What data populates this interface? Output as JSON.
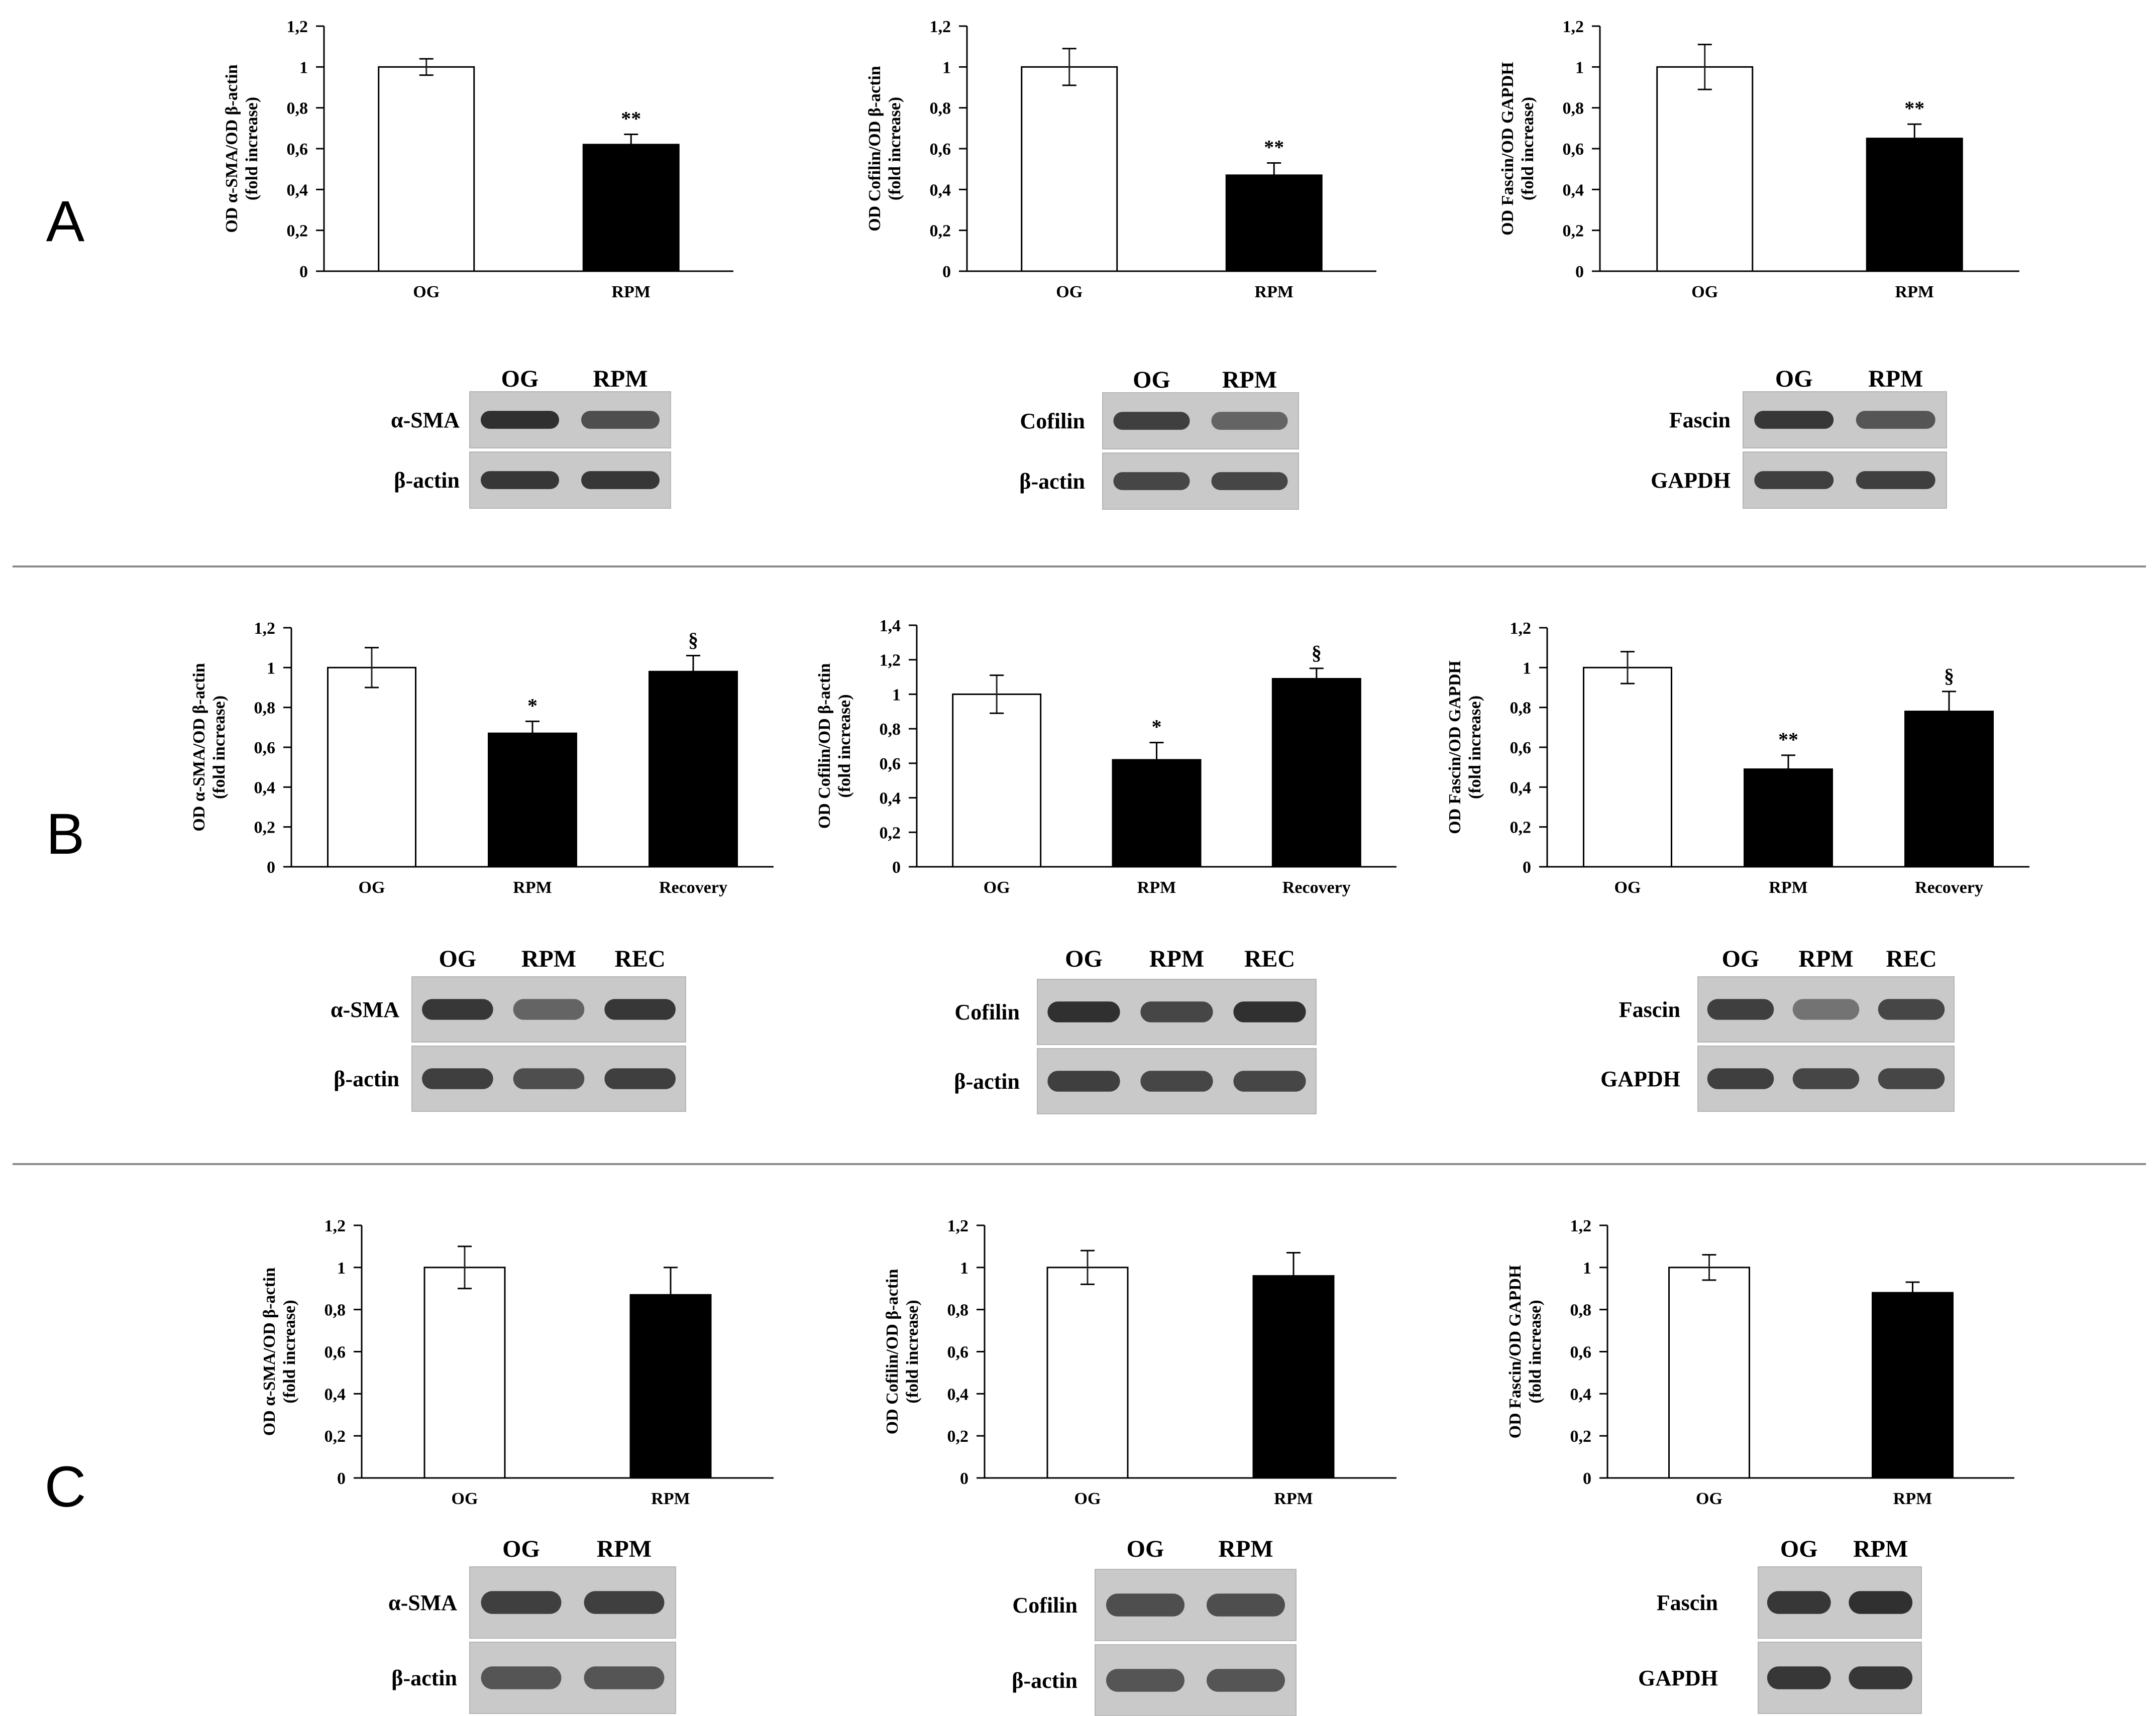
{
  "panels": [
    {
      "letter": "A"
    },
    {
      "letter": "B"
    },
    {
      "letter": "C"
    }
  ],
  "chart_data": [
    {
      "panel": "A",
      "type": "bar",
      "ylabel": "OD α-SMA/OD β-actin (fold increase)",
      "categories": [
        "OG",
        "RPM"
      ],
      "values": [
        1.0,
        0.62
      ],
      "errors": [
        0.04,
        0.05
      ],
      "significance": [
        "",
        "**"
      ],
      "colors": [
        "#ffffff",
        "#000000"
      ],
      "yticks": [
        "0",
        "0,2",
        "0,4",
        "0,6",
        "0,8",
        "1",
        "1,2"
      ],
      "ylim": [
        0,
        1.2
      ]
    },
    {
      "panel": "A",
      "type": "bar",
      "ylabel": "OD Cofilin/OD β-actin (fold increase)",
      "categories": [
        "OG",
        "RPM"
      ],
      "values": [
        1.0,
        0.47
      ],
      "errors": [
        0.09,
        0.06
      ],
      "significance": [
        "",
        "**"
      ],
      "colors": [
        "#ffffff",
        "#000000"
      ],
      "yticks": [
        "0",
        "0,2",
        "0,4",
        "0,6",
        "0,8",
        "1",
        "1,2"
      ],
      "ylim": [
        0,
        1.2
      ]
    },
    {
      "panel": "A",
      "type": "bar",
      "ylabel": "OD Fascin/OD GAPDH (fold increase)",
      "categories": [
        "OG",
        "RPM"
      ],
      "values": [
        1.0,
        0.65
      ],
      "errors": [
        0.11,
        0.07
      ],
      "significance": [
        "",
        "**"
      ],
      "colors": [
        "#ffffff",
        "#000000"
      ],
      "yticks": [
        "0",
        "0,2",
        "0,4",
        "0,6",
        "0,8",
        "1",
        "1,2"
      ],
      "ylim": [
        0,
        1.2
      ]
    },
    {
      "panel": "B",
      "type": "bar",
      "ylabel": "OD α-SMA/OD β-actin (fold increase)",
      "categories": [
        "OG",
        "RPM",
        "Recovery"
      ],
      "values": [
        1.0,
        0.67,
        0.98
      ],
      "errors": [
        0.1,
        0.06,
        0.08
      ],
      "significance": [
        "",
        "*",
        "§"
      ],
      "colors": [
        "#ffffff",
        "#000000",
        "#000000"
      ],
      "yticks": [
        "0",
        "0,2",
        "0,4",
        "0,6",
        "0,8",
        "1",
        "1,2"
      ],
      "ylim": [
        0,
        1.2
      ]
    },
    {
      "panel": "B",
      "type": "bar",
      "ylabel": "OD Cofilin/OD β-actin (fold increase)",
      "categories": [
        "OG",
        "RPM",
        "Recovery"
      ],
      "values": [
        1.0,
        0.62,
        1.09
      ],
      "errors": [
        0.11,
        0.1,
        0.06
      ],
      "significance": [
        "",
        "*",
        "§"
      ],
      "colors": [
        "#ffffff",
        "#000000",
        "#000000"
      ],
      "yticks": [
        "0",
        "0,2",
        "0,4",
        "0,6",
        "0,8",
        "1",
        "1,2",
        "1,4"
      ],
      "ylim": [
        0,
        1.4
      ]
    },
    {
      "panel": "B",
      "type": "bar",
      "ylabel": "OD Fascin/OD GAPDH (fold increase)",
      "categories": [
        "OG",
        "RPM",
        "Recovery"
      ],
      "values": [
        1.0,
        0.49,
        0.78
      ],
      "errors": [
        0.08,
        0.07,
        0.1
      ],
      "significance": [
        "",
        "**",
        "§"
      ],
      "colors": [
        "#ffffff",
        "#000000",
        "#000000"
      ],
      "yticks": [
        "0",
        "0,2",
        "0,4",
        "0,6",
        "0,8",
        "1",
        "1,2"
      ],
      "ylim": [
        0,
        1.2
      ]
    },
    {
      "panel": "C",
      "type": "bar",
      "ylabel": "OD α-SMA/OD β-actin (fold increase)",
      "categories": [
        "OG",
        "RPM"
      ],
      "values": [
        1.0,
        0.87
      ],
      "errors": [
        0.1,
        0.13
      ],
      "significance": [
        "",
        ""
      ],
      "colors": [
        "#ffffff",
        "#000000"
      ],
      "yticks": [
        "0",
        "0,2",
        "0,4",
        "0,6",
        "0,8",
        "1",
        "1,2"
      ],
      "ylim": [
        0,
        1.2
      ]
    },
    {
      "panel": "C",
      "type": "bar",
      "ylabel": "OD Cofilin/OD β-actin (fold increase)",
      "categories": [
        "OG",
        "RPM"
      ],
      "values": [
        1.0,
        0.96
      ],
      "errors": [
        0.08,
        0.11
      ],
      "significance": [
        "",
        ""
      ],
      "colors": [
        "#ffffff",
        "#000000"
      ],
      "yticks": [
        "0",
        "0,2",
        "0,4",
        "0,6",
        "0,8",
        "1",
        "1,2"
      ],
      "ylim": [
        0,
        1.2
      ]
    },
    {
      "panel": "C",
      "type": "bar",
      "ylabel": "OD Fascin/OD GAPDH (fold increase)",
      "categories": [
        "OG",
        "RPM"
      ],
      "values": [
        1.0,
        0.88
      ],
      "errors": [
        0.06,
        0.05
      ],
      "significance": [
        "",
        ""
      ],
      "colors": [
        "#ffffff",
        "#000000"
      ],
      "yticks": [
        "0",
        "0,2",
        "0,4",
        "0,6",
        "0,8",
        "1",
        "1,2"
      ],
      "ylim": [
        0,
        1.2
      ]
    }
  ],
  "blots": [
    {
      "panel": "A",
      "lanes": [
        "OG",
        "RPM"
      ],
      "rows": [
        {
          "label": "α-SMA",
          "intensity": [
            0.95,
            0.75
          ]
        },
        {
          "label": "β-actin",
          "intensity": [
            0.9,
            0.9
          ]
        }
      ]
    },
    {
      "panel": "A",
      "lanes": [
        "OG",
        "RPM"
      ],
      "rows": [
        {
          "label": "Cofilin",
          "intensity": [
            0.85,
            0.6
          ]
        },
        {
          "label": "β-actin",
          "intensity": [
            0.8,
            0.8
          ]
        }
      ]
    },
    {
      "panel": "A",
      "lanes": [
        "OG",
        "RPM"
      ],
      "rows": [
        {
          "label": "Fascin",
          "intensity": [
            0.9,
            0.7
          ]
        },
        {
          "label": "GAPDH",
          "intensity": [
            0.85,
            0.85
          ]
        }
      ]
    },
    {
      "panel": "B",
      "lanes": [
        "OG",
        "RPM",
        "REC"
      ],
      "rows": [
        {
          "label": "α-SMA",
          "intensity": [
            0.9,
            0.6,
            0.9
          ]
        },
        {
          "label": "β-actin",
          "intensity": [
            0.85,
            0.75,
            0.85
          ]
        }
      ]
    },
    {
      "panel": "B",
      "lanes": [
        "OG",
        "RPM",
        "REC"
      ],
      "rows": [
        {
          "label": "Cofilin",
          "intensity": [
            0.95,
            0.8,
            0.95
          ]
        },
        {
          "label": "β-actin",
          "intensity": [
            0.85,
            0.8,
            0.8
          ]
        }
      ]
    },
    {
      "panel": "B",
      "lanes": [
        "OG",
        "RPM",
        "REC"
      ],
      "rows": [
        {
          "label": "Fascin",
          "intensity": [
            0.85,
            0.5,
            0.8
          ]
        },
        {
          "label": "GAPDH",
          "intensity": [
            0.85,
            0.8,
            0.8
          ]
        }
      ]
    },
    {
      "panel": "C",
      "lanes": [
        "OG",
        "RPM"
      ],
      "rows": [
        {
          "label": "α-SMA",
          "intensity": [
            0.85,
            0.85
          ]
        },
        {
          "label": "β-actin",
          "intensity": [
            0.7,
            0.7
          ]
        }
      ]
    },
    {
      "panel": "C",
      "lanes": [
        "OG",
        "RPM"
      ],
      "rows": [
        {
          "label": "Cofilin",
          "intensity": [
            0.75,
            0.75
          ]
        },
        {
          "label": "β-actin",
          "intensity": [
            0.7,
            0.7
          ]
        }
      ]
    },
    {
      "panel": "C",
      "lanes": [
        "OG",
        "RPM"
      ],
      "rows": [
        {
          "label": "Fascin",
          "intensity": [
            0.9,
            0.95
          ]
        },
        {
          "label": "GAPDH",
          "intensity": [
            0.9,
            0.9
          ]
        }
      ]
    }
  ]
}
